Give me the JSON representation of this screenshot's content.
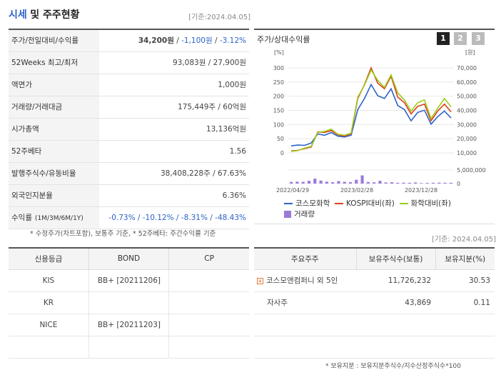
{
  "header": {
    "title_blue": "시세",
    "title_rest": "및 주주현황",
    "date": "[기준:2024.04.05]"
  },
  "quote_table": [
    {
      "label": "주가/전일대비/수익률",
      "value_main": "34,200원",
      "value_sep1": " / ",
      "value_change": "-1,100원",
      "value_sep2": " / ",
      "value_rate": "-3.12%"
    },
    {
      "label": "52Weeks 최고/최저",
      "value": "93,083원 / 27,900원"
    },
    {
      "label": "액면가",
      "value": "1,000원"
    },
    {
      "label": "거래량/거래대금",
      "value": "175,449주 / 60억원"
    },
    {
      "label": "시가총액",
      "value": "13,136억원"
    },
    {
      "label": "52주베타",
      "value": "1.56"
    },
    {
      "label": "발행주식수/유동비율",
      "value": "38,408,228주 / 67.63%"
    },
    {
      "label": "외국인지분율",
      "value": "6.36%"
    },
    {
      "label": "수익률",
      "label_small": "(1M/3M/6M/1Y)",
      "value": "-0.73% / -10.12% / -8.31% / -48.43%"
    }
  ],
  "quote_note": "* 수정주가(차트포함), 보통주 기준, * 52주베타: 주간수익률 기준",
  "chart_panel": {
    "title": "주가/상대수익률",
    "tabs": [
      "1",
      "2",
      "3"
    ],
    "left_unit": "[%]",
    "right_unit": "[원]"
  },
  "chart_data": {
    "type": "line",
    "title": "주가/상대수익률",
    "x_tick_labels": [
      "2022/04/29",
      "2023/02/28",
      "2023/12/28"
    ],
    "left_axis": {
      "unit": "%",
      "ticks": [
        "300",
        "250",
        "200",
        "150",
        "100",
        "50",
        "0"
      ],
      "ylim": [
        -5,
        300
      ]
    },
    "right_axis": {
      "unit": "원",
      "ticks": [
        "70,000",
        "60,000",
        "50,000",
        "40,000",
        "30,000",
        "20,000",
        "10,000"
      ],
      "ylim": [
        10000,
        70000
      ]
    },
    "volume_axis": {
      "ticks": [
        "5,000,000",
        "0"
      ],
      "ylim": [
        0,
        5000000
      ]
    },
    "series": [
      {
        "name": "코스모화학",
        "color": "#2d63c8",
        "values": [
          20,
          23,
          22,
          30,
          63,
          58,
          68,
          55,
          52,
          58,
          150,
          190,
          240,
          200,
          190,
          225,
          165,
          150,
          110,
          140,
          148,
          98,
          125,
          145,
          120
        ]
      },
      {
        "name": "KOSPI대비(좌)",
        "color": "#d9401a",
        "values": [
          2,
          4,
          10,
          16,
          70,
          68,
          75,
          60,
          55,
          64,
          190,
          240,
          300,
          245,
          225,
          270,
          195,
          175,
          135,
          162,
          170,
          110,
          145,
          170,
          142
        ]
      },
      {
        "name": "화학대비(좌)",
        "color": "#9ccc1a",
        "values": [
          0,
          3,
          12,
          18,
          68,
          72,
          80,
          62,
          58,
          66,
          195,
          238,
          292,
          255,
          230,
          275,
          210,
          185,
          145,
          175,
          185,
          118,
          155,
          190,
          160
        ]
      }
    ],
    "volume": {
      "name": "거래량",
      "color": "#9a7ad8",
      "values": [
        600000,
        700000,
        650000,
        1000000,
        1800000,
        1100000,
        700000,
        500000,
        900000,
        650000,
        550000,
        1400000,
        3000000,
        600000,
        450000,
        1000000,
        400000,
        500000,
        300000,
        350000,
        300000,
        400000,
        200000,
        250000,
        300000,
        350000,
        300000,
        300000
      ]
    }
  },
  "credit": {
    "headers": [
      "신용등급",
      "BOND",
      "CP"
    ],
    "rows": [
      [
        "KIS",
        "BB+ [20211206]",
        ""
      ],
      [
        "KR",
        "",
        ""
      ],
      [
        "NICE",
        "BB+ [20211203]",
        ""
      ],
      [
        "",
        "",
        ""
      ]
    ]
  },
  "holders": {
    "date": "[기준: 2024.04.05]",
    "headers": [
      "주요주주",
      "보유주식수(보통)",
      "보유지분(%)"
    ],
    "rows": [
      {
        "name": "코스모앤컴퍼니 외 5인",
        "shares": "11,726,232",
        "pct": "30.53",
        "expandable": true
      },
      {
        "name": "자사주",
        "shares": "43,869",
        "pct": "0.11",
        "expandable": false
      },
      {
        "name": "",
        "shares": "",
        "pct": "",
        "expandable": false
      },
      {
        "name": "",
        "shares": "",
        "pct": "",
        "expandable": false
      }
    ],
    "note": "* 보유지분 : 보유지분주식수/지수산정주식수*100"
  }
}
